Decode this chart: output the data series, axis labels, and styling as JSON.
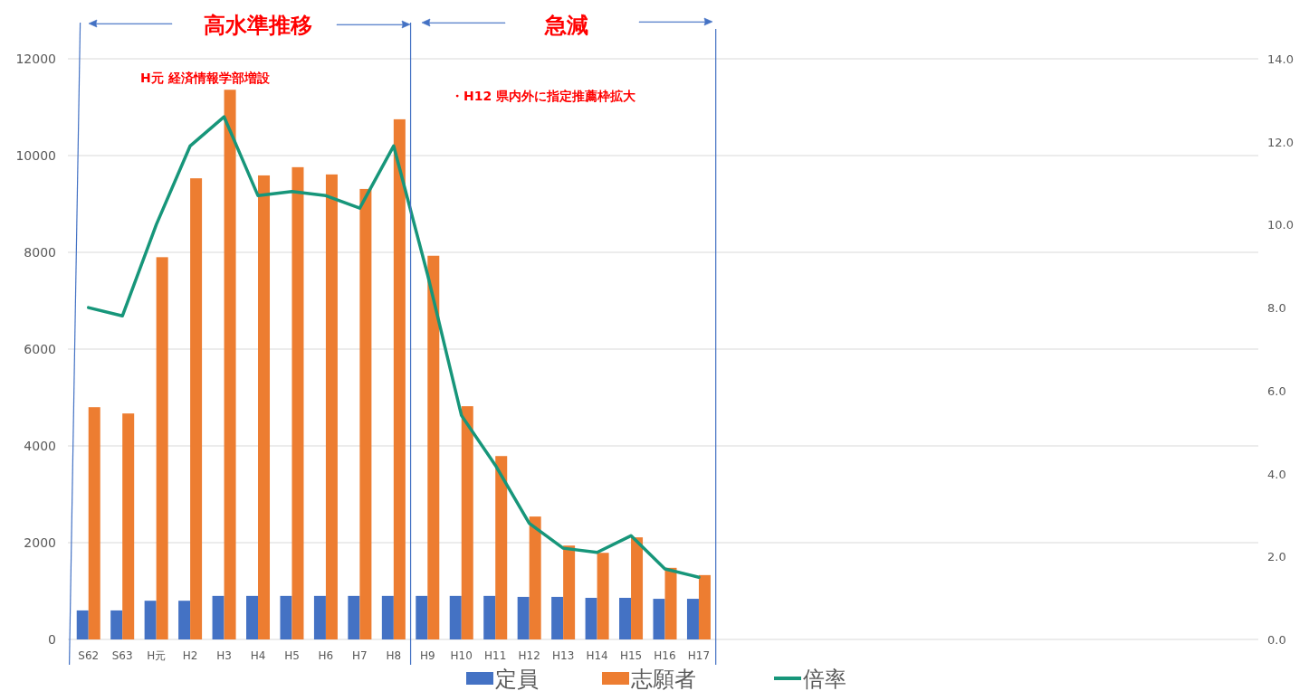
{
  "chart_data": {
    "type": "bar",
    "categories": [
      "S62",
      "S63",
      "H元",
      "H2",
      "H3",
      "H4",
      "H5",
      "H6",
      "H7",
      "H8",
      "H9",
      "H10",
      "H11",
      "H12",
      "H13",
      "H14",
      "H15",
      "H16",
      "H17",
      null,
      null,
      null,
      null,
      null,
      null,
      null,
      null,
      null,
      null,
      null,
      null,
      null,
      null,
      null,
      null
    ],
    "series": [
      {
        "name": "定員",
        "color": "#4472c4",
        "values": [
          600,
          600,
          800,
          800,
          900,
          900,
          900,
          900,
          900,
          900,
          900,
          900,
          900,
          880,
          880,
          860,
          860,
          840,
          840,
          null,
          null,
          null,
          null,
          null,
          null,
          null,
          null,
          null,
          null,
          null,
          null,
          null,
          null,
          null,
          null
        ]
      },
      {
        "name": "志願者",
        "color": "#ed7d31",
        "values": [
          4800,
          4670,
          7900,
          9530,
          11360,
          9590,
          9760,
          9610,
          9310,
          10750,
          7930,
          4820,
          3790,
          2540,
          1940,
          1790,
          2110,
          1480,
          1330,
          null,
          null,
          null,
          null,
          null,
          null,
          null,
          null,
          null,
          null,
          null,
          null,
          null,
          null,
          null,
          null
        ]
      },
      {
        "name": "倍率",
        "type": "line",
        "axis": "y2",
        "color": "#17967a",
        "values": [
          8.0,
          7.8,
          10.0,
          11.9,
          12.6,
          10.7,
          10.8,
          10.7,
          10.4,
          11.9,
          8.8,
          5.4,
          4.2,
          2.8,
          2.2,
          2.1,
          2.5,
          1.7,
          1.5,
          null,
          null,
          null,
          null,
          null,
          null,
          null,
          null,
          null,
          null,
          null,
          null,
          null,
          null,
          null,
          null
        ]
      }
    ],
    "ylim": [
      0,
      12000
    ],
    "yticks": [
      0,
      2000,
      4000,
      6000,
      8000,
      10000,
      12000
    ],
    "y2lim": [
      0,
      14
    ],
    "y2ticks": [
      {
        "value": 0,
        "label": "0.0"
      },
      {
        "value": 2,
        "label": "2.0"
      },
      {
        "value": 4,
        "label": "4.0"
      },
      {
        "value": 6,
        "label": "6.0"
      },
      {
        "value": 8,
        "label": "8.0"
      },
      {
        "value": 10,
        "label": "10.0"
      },
      {
        "value": 12,
        "label": "12.0"
      },
      {
        "value": 14,
        "label": "14.0"
      }
    ],
    "grid": "y",
    "legend": "bottom",
    "annotations": [
      "高水準推移",
      "急減",
      "H元 経済情報学部増設",
      "・H12  県内外に指定推薦枠拡大"
    ]
  }
}
